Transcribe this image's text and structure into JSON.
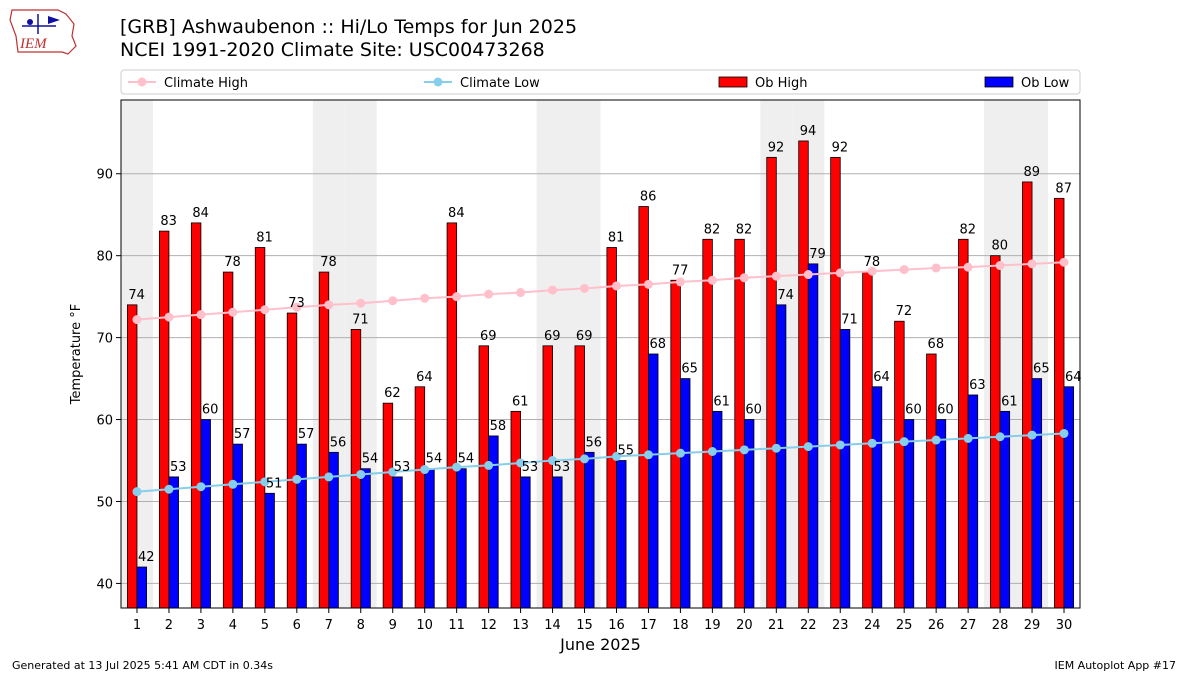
{
  "header": {
    "title_line1": "[GRB] Ashwaubenon :: Hi/Lo Temps for Jun 2025",
    "title_line2": "NCEI 1991-2020 Climate Site: USC00473268"
  },
  "logo": {
    "text": "IEM"
  },
  "footer": {
    "generated": "Generated at 13 Jul 2025 5:41 AM CDT in 0.34s",
    "app": "IEM Autoplot App #17"
  },
  "colors": {
    "ob_high": "#ff0000",
    "ob_low": "#0000ff",
    "climate_high": "#ffc0cb",
    "climate_low": "#87ceeb",
    "weekend_band": "#efefef"
  },
  "chart_data": {
    "type": "bar",
    "xlabel": "June 2025",
    "ylabel": "Temperature °F",
    "ylim": [
      37,
      99
    ],
    "yticks": [
      40,
      50,
      60,
      70,
      80,
      90
    ],
    "grid": "y",
    "legend_position": "top",
    "categories": [
      "1",
      "2",
      "3",
      "4",
      "5",
      "6",
      "7",
      "8",
      "9",
      "10",
      "11",
      "12",
      "13",
      "14",
      "15",
      "16",
      "17",
      "18",
      "19",
      "20",
      "21",
      "22",
      "23",
      "24",
      "25",
      "26",
      "27",
      "28",
      "29",
      "30"
    ],
    "weekend_days": [
      1,
      7,
      8,
      14,
      15,
      21,
      22,
      28,
      29
    ],
    "series": [
      {
        "name": "Ob High",
        "kind": "bar",
        "values": [
          74,
          83,
          84,
          78,
          81,
          73,
          78,
          71,
          62,
          64,
          84,
          69,
          61,
          69,
          69,
          81,
          86,
          77,
          82,
          82,
          92,
          94,
          92,
          78,
          72,
          68,
          82,
          80,
          89,
          87
        ]
      },
      {
        "name": "Ob Low",
        "kind": "bar",
        "values": [
          42,
          53,
          60,
          57,
          51,
          57,
          56,
          54,
          53,
          54,
          54,
          58,
          53,
          53,
          56,
          55,
          68,
          65,
          61,
          60,
          74,
          79,
          71,
          64,
          60,
          60,
          63,
          61,
          65,
          64
        ]
      },
      {
        "name": "Climate High",
        "kind": "line",
        "values": [
          72.2,
          72.5,
          72.8,
          73.1,
          73.4,
          73.7,
          74.0,
          74.2,
          74.5,
          74.8,
          75.0,
          75.3,
          75.5,
          75.8,
          76.0,
          76.3,
          76.5,
          76.8,
          77.0,
          77.3,
          77.5,
          77.7,
          77.9,
          78.1,
          78.3,
          78.5,
          78.6,
          78.8,
          79.0,
          79.2
        ]
      },
      {
        "name": "Climate Low",
        "kind": "line",
        "values": [
          51.2,
          51.5,
          51.8,
          52.1,
          52.4,
          52.7,
          53.0,
          53.3,
          53.6,
          53.9,
          54.2,
          54.4,
          54.7,
          55.0,
          55.2,
          55.5,
          55.7,
          55.9,
          56.1,
          56.3,
          56.5,
          56.7,
          56.9,
          57.1,
          57.3,
          57.5,
          57.7,
          57.9,
          58.1,
          58.3
        ]
      }
    ]
  }
}
